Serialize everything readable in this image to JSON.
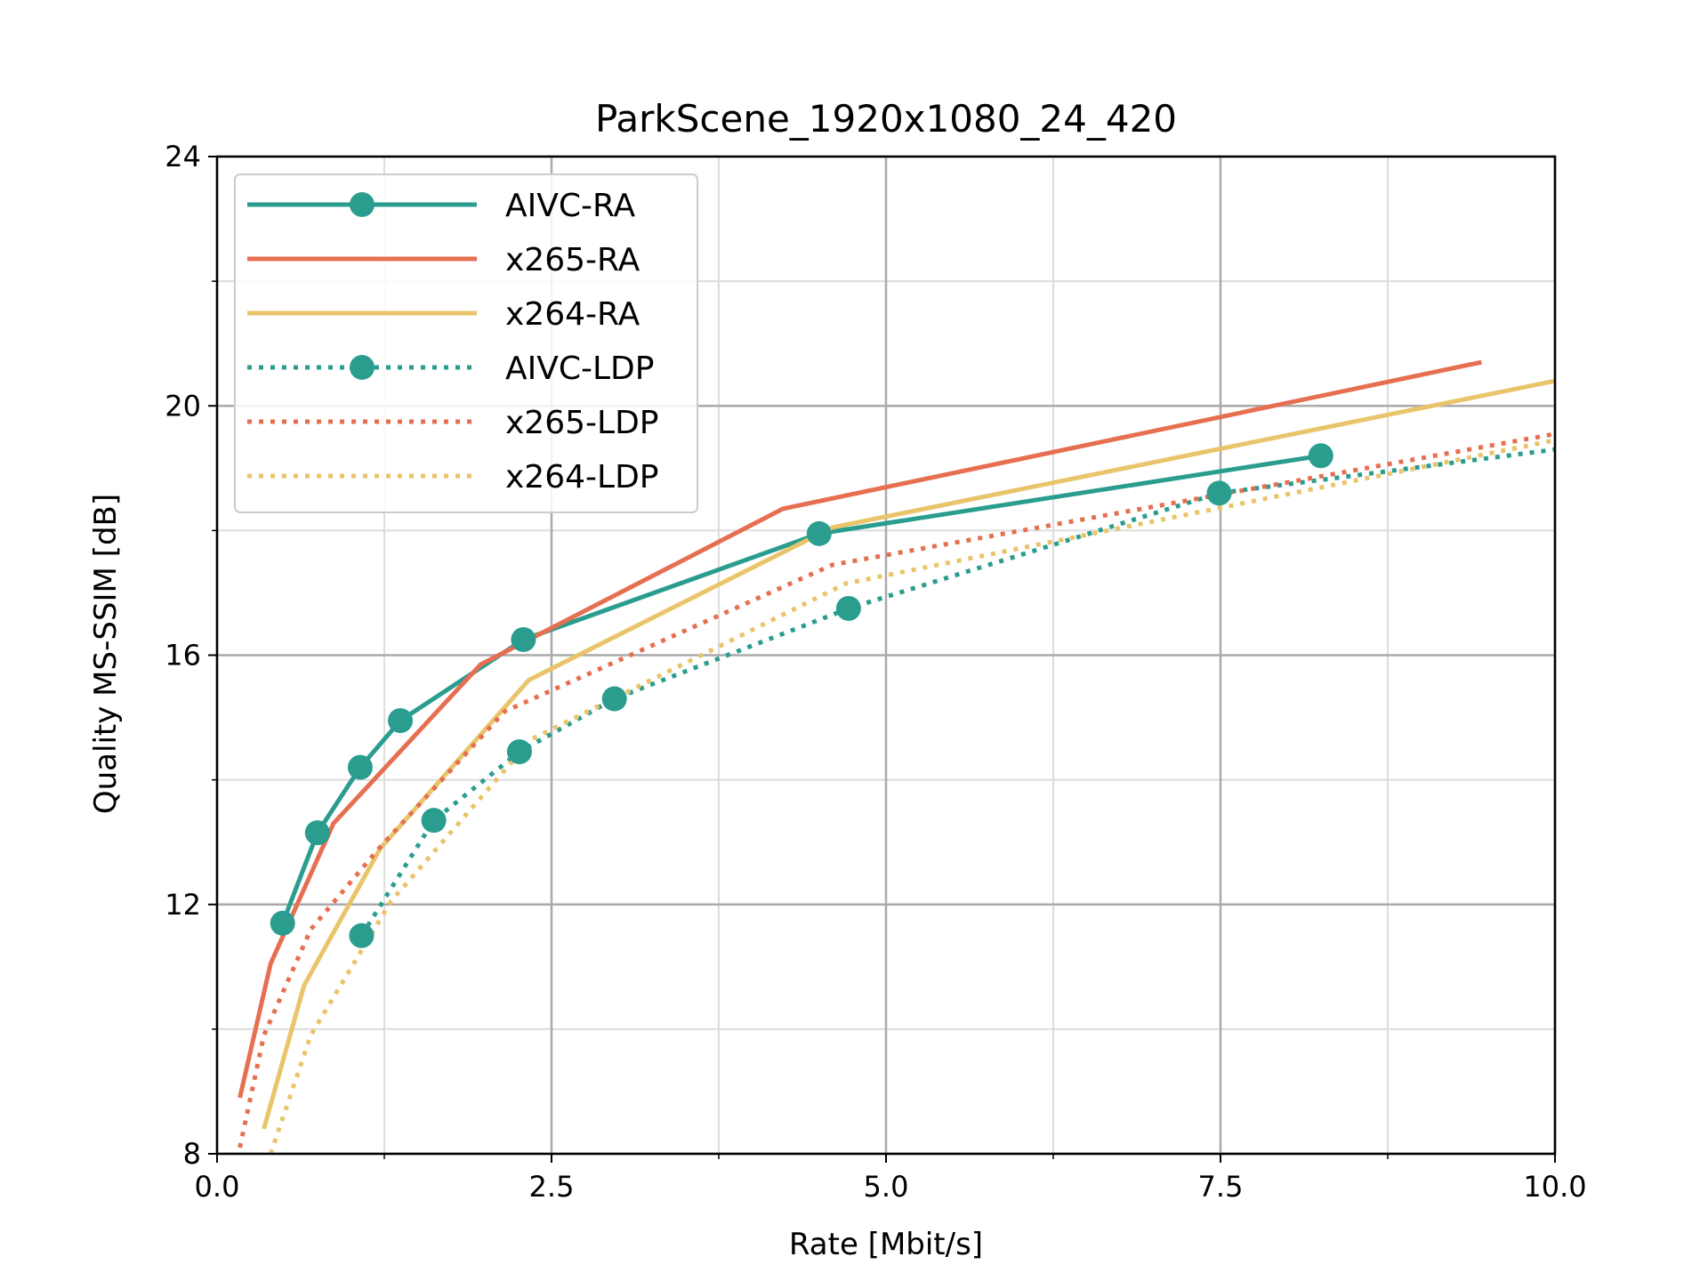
{
  "chart_data": {
    "type": "line",
    "title": "ParkScene_1920x1080_24_420",
    "xlabel": "Rate [Mbit/s]",
    "ylabel": "Quality MS-SSIM [dB]",
    "xlim": [
      0,
      10
    ],
    "ylim": [
      8,
      24
    ],
    "xticks": [
      0.0,
      2.5,
      5.0,
      7.5,
      10.0
    ],
    "xtick_labels": [
      "0.0",
      "2.5",
      "5.0",
      "7.5",
      "10.0"
    ],
    "yticks": [
      8,
      12,
      16,
      20,
      24
    ],
    "ytick_labels": [
      "8",
      "12",
      "16",
      "20",
      "24"
    ],
    "x_minor_ticks": [
      1.25,
      3.75,
      6.25,
      8.75
    ],
    "y_minor_ticks": [
      10,
      14,
      18,
      22
    ],
    "grid": true,
    "legend_position": "top-left",
    "series": [
      {
        "name": "AIVC-RA",
        "color": "#2a9d8f",
        "style": "solid",
        "marker": true,
        "x": [
          0.49,
          0.75,
          1.07,
          1.37,
          2.29,
          4.5,
          8.25
        ],
        "y": [
          11.7,
          13.15,
          14.2,
          14.95,
          16.25,
          17.95,
          19.2
        ]
      },
      {
        "name": "x265-RA",
        "color": "#e76f51",
        "style": "solid",
        "marker": false,
        "x": [
          0.17,
          0.4,
          0.87,
          1.97,
          4.23,
          9.45
        ],
        "y": [
          8.9,
          11.05,
          13.3,
          15.85,
          18.35,
          20.7
        ]
      },
      {
        "name": "x264-RA",
        "color": "#e9c46a",
        "style": "solid",
        "marker": false,
        "x": [
          0.35,
          0.65,
          1.22,
          2.33,
          4.6,
          10.0
        ],
        "y": [
          8.4,
          10.7,
          12.9,
          15.6,
          18.05,
          20.4
        ]
      },
      {
        "name": "AIVC-LDP",
        "color": "#2a9d8f",
        "style": "dotted",
        "marker": true,
        "x": [
          1.08,
          1.62,
          2.26,
          2.97,
          4.72,
          7.49,
          10.0
        ],
        "y": [
          11.5,
          13.35,
          14.45,
          15.3,
          16.75,
          18.6,
          19.3
        ]
      },
      {
        "name": "x265-LDP",
        "color": "#e76f51",
        "style": "dotted",
        "marker": false,
        "x": [
          0.17,
          0.35,
          0.7,
          1.21,
          2.15,
          4.6,
          10.0
        ],
        "y": [
          8.1,
          9.9,
          11.6,
          12.9,
          15.1,
          17.45,
          19.55
        ]
      },
      {
        "name": "x264-LDP",
        "color": "#e9c46a",
        "style": "dotted",
        "marker": false,
        "x": [
          0.4,
          0.7,
          1.3,
          2.35,
          4.7,
          10.0
        ],
        "y": [
          8.0,
          9.9,
          12.05,
          14.65,
          17.15,
          19.45
        ]
      }
    ]
  }
}
